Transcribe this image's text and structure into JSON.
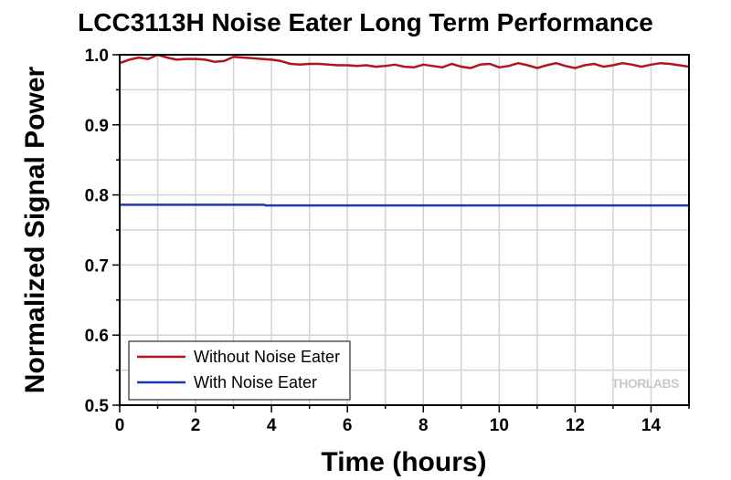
{
  "chart_data": {
    "type": "line",
    "title": "LCC3113H Noise Eater Long Term Performance",
    "xlabel": "Time (hours)",
    "ylabel": "Normalized Signal Power",
    "xlim": [
      0,
      15
    ],
    "ylim": [
      0.5,
      1.0
    ],
    "xticks": [
      "0",
      "2",
      "4",
      "6",
      "8",
      "10",
      "12",
      "14"
    ],
    "yticks": [
      "0.5",
      "0.6",
      "0.7",
      "0.8",
      "0.9",
      "1.0"
    ],
    "grid": true,
    "legend_position": "bottom-left",
    "watermark": "THORLABS",
    "series": [
      {
        "name": "Without Noise Eater",
        "color": "#b3141b",
        "x": [
          0,
          0.25,
          0.5,
          0.75,
          1.0,
          1.25,
          1.5,
          1.75,
          2.0,
          2.25,
          2.5,
          2.75,
          3.0,
          3.25,
          3.5,
          3.75,
          4.0,
          4.25,
          4.5,
          4.75,
          5.0,
          5.25,
          5.5,
          5.75,
          6.0,
          6.25,
          6.5,
          6.75,
          7.0,
          7.25,
          7.5,
          7.75,
          8.0,
          8.25,
          8.5,
          8.75,
          9.0,
          9.25,
          9.5,
          9.75,
          10.0,
          10.25,
          10.5,
          10.75,
          11.0,
          11.25,
          11.5,
          11.75,
          12.0,
          12.25,
          12.5,
          12.75,
          13.0,
          13.25,
          13.5,
          13.75,
          14.0,
          14.25,
          14.5,
          14.75,
          15.0
        ],
        "values": [
          0.988,
          0.993,
          0.996,
          0.994,
          1.0,
          0.996,
          0.993,
          0.994,
          0.994,
          0.993,
          0.99,
          0.991,
          0.997,
          0.996,
          0.995,
          0.994,
          0.993,
          0.991,
          0.987,
          0.986,
          0.987,
          0.987,
          0.986,
          0.985,
          0.985,
          0.984,
          0.985,
          0.983,
          0.984,
          0.986,
          0.983,
          0.982,
          0.986,
          0.984,
          0.982,
          0.987,
          0.983,
          0.981,
          0.986,
          0.987,
          0.982,
          0.984,
          0.988,
          0.985,
          0.981,
          0.985,
          0.988,
          0.984,
          0.981,
          0.985,
          0.987,
          0.983,
          0.985,
          0.988,
          0.986,
          0.983,
          0.986,
          0.988,
          0.987,
          0.985,
          0.983
        ]
      },
      {
        "name": "With Noise Eater",
        "color": "#1f37b0",
        "x": [
          0,
          3.8,
          3.85,
          15.0
        ],
        "values": [
          0.786,
          0.786,
          0.785,
          0.785
        ]
      }
    ]
  }
}
